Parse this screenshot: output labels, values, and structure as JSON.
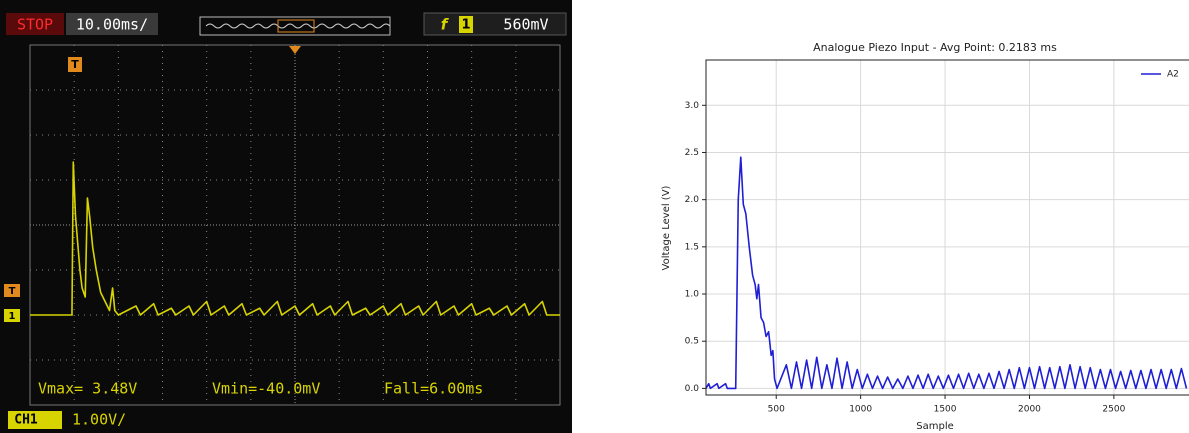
{
  "chart_data": [
    {
      "type": "line",
      "status": "STOP",
      "timebase": "10.00ms/",
      "trigger_slope": "f",
      "trigger_source": "1",
      "trigger_level": "560mV",
      "trigger_marker": "T",
      "channel_marker": "1",
      "measurements": [
        "Vmax= 3.48V",
        "Vmin=-40.0mV",
        "Fall=6.00ms"
      ],
      "channel": "CH1",
      "scale": "1.00V/",
      "grid": true,
      "xlim": [
        0,
        120
      ],
      "ylim": [
        -2,
        6
      ],
      "x": [
        0,
        9.5,
        9.8,
        10.3,
        10.8,
        11.3,
        11.8,
        12.5,
        13.0,
        13.5,
        14.2,
        15.0,
        16.0,
        17.0,
        18.0,
        18.7,
        19.2,
        20,
        24,
        25,
        28,
        29,
        32,
        33,
        36,
        37,
        40,
        41,
        44,
        45,
        48,
        49,
        52,
        53,
        56,
        57,
        60,
        61,
        64,
        65,
        68,
        69,
        72,
        73,
        76,
        77,
        80,
        81,
        84,
        85,
        88,
        89,
        92,
        93,
        96,
        97,
        100,
        101,
        104,
        105,
        108,
        109,
        112,
        113,
        116,
        117,
        120
      ],
      "series": [
        {
          "color": "#d8d400",
          "values": [
            0,
            0,
            3.4,
            2.2,
            1.6,
            1.0,
            0.6,
            0.4,
            2.6,
            2.2,
            1.5,
            1.0,
            0.5,
            0.3,
            0.1,
            0.6,
            0.1,
            0,
            0.2,
            0,
            0.25,
            0,
            0.15,
            0,
            0.2,
            0,
            0.3,
            0,
            0.2,
            0,
            0.25,
            0,
            0.15,
            0,
            0.3,
            0,
            0.2,
            0,
            0.25,
            0,
            0.2,
            0,
            0.3,
            0,
            0.15,
            0,
            0.2,
            0,
            0.25,
            0,
            0.2,
            0,
            0.3,
            0,
            0.2,
            0,
            0.25,
            0,
            0.15,
            0,
            0.2,
            0,
            0.25,
            0,
            0.3,
            0,
            0
          ]
        }
      ]
    },
    {
      "type": "line",
      "title": "Analogue Piezo Input - Avg Point: 0.2183 ms",
      "xlabel": "Sample",
      "ylabel": "Voltage Level (V)",
      "grid": true,
      "legend": "upper right",
      "xlim": [
        84,
        2945
      ],
      "ylim": [
        -0.07,
        3.48
      ],
      "xticks": [
        500,
        1000,
        1500,
        2000,
        2500
      ],
      "yticks": [
        {
          "value": 0,
          "label": "0.0"
        },
        {
          "value": 0.5,
          "label": "0.5"
        },
        {
          "value": 1,
          "label": "1.0"
        },
        {
          "value": 1.5,
          "label": "1.5"
        },
        {
          "value": 2,
          "label": "2.0"
        },
        {
          "value": 2.5,
          "label": "2.5"
        },
        {
          "value": 3,
          "label": "3.0"
        }
      ],
      "x": [
        84,
        100,
        110,
        150,
        160,
        200,
        210,
        260,
        275,
        290,
        305,
        320,
        340,
        360,
        375,
        385,
        395,
        410,
        425,
        440,
        455,
        470,
        480,
        490,
        505,
        560,
        590,
        620,
        650,
        680,
        710,
        740,
        770,
        800,
        830,
        860,
        890,
        920,
        950,
        980,
        1010,
        1040,
        1070,
        1100,
        1130,
        1160,
        1190,
        1220,
        1250,
        1280,
        1310,
        1340,
        1370,
        1400,
        1430,
        1460,
        1490,
        1520,
        1550,
        1580,
        1610,
        1640,
        1670,
        1700,
        1730,
        1760,
        1790,
        1820,
        1850,
        1880,
        1910,
        1940,
        1970,
        2000,
        2030,
        2060,
        2090,
        2120,
        2150,
        2180,
        2210,
        2240,
        2270,
        2300,
        2330,
        2360,
        2390,
        2420,
        2450,
        2480,
        2510,
        2540,
        2570,
        2600,
        2630,
        2660,
        2690,
        2720,
        2750,
        2780,
        2810,
        2840,
        2870,
        2900,
        2930
      ],
      "series": [
        {
          "name": "A2",
          "color": "#1f1fd6",
          "values": [
            0.0,
            0.05,
            0.0,
            0.05,
            0.0,
            0.05,
            0.0,
            0.0,
            2.0,
            2.45,
            1.95,
            1.85,
            1.5,
            1.2,
            1.1,
            0.95,
            1.1,
            0.75,
            0.7,
            0.55,
            0.6,
            0.35,
            0.4,
            0.1,
            0.0,
            0.25,
            0.0,
            0.28,
            0.0,
            0.3,
            0.0,
            0.33,
            0.0,
            0.25,
            0.0,
            0.32,
            0.0,
            0.28,
            0.0,
            0.2,
            0.0,
            0.15,
            0.0,
            0.13,
            0.0,
            0.12,
            0.0,
            0.1,
            0.0,
            0.13,
            0.0,
            0.14,
            0.0,
            0.15,
            0.0,
            0.13,
            0.0,
            0.14,
            0.0,
            0.15,
            0.0,
            0.16,
            0.0,
            0.15,
            0.0,
            0.16,
            0.0,
            0.18,
            0.0,
            0.2,
            0.0,
            0.22,
            0.0,
            0.22,
            0.0,
            0.23,
            0.0,
            0.22,
            0.0,
            0.23,
            0.0,
            0.25,
            0.0,
            0.23,
            0.0,
            0.22,
            0.0,
            0.2,
            0.0,
            0.2,
            0.0,
            0.18,
            0.0,
            0.19,
            0.0,
            0.19,
            0.0,
            0.2,
            0.0,
            0.2,
            0.0,
            0.2,
            0.0,
            0.21,
            0.0
          ]
        }
      ]
    }
  ]
}
